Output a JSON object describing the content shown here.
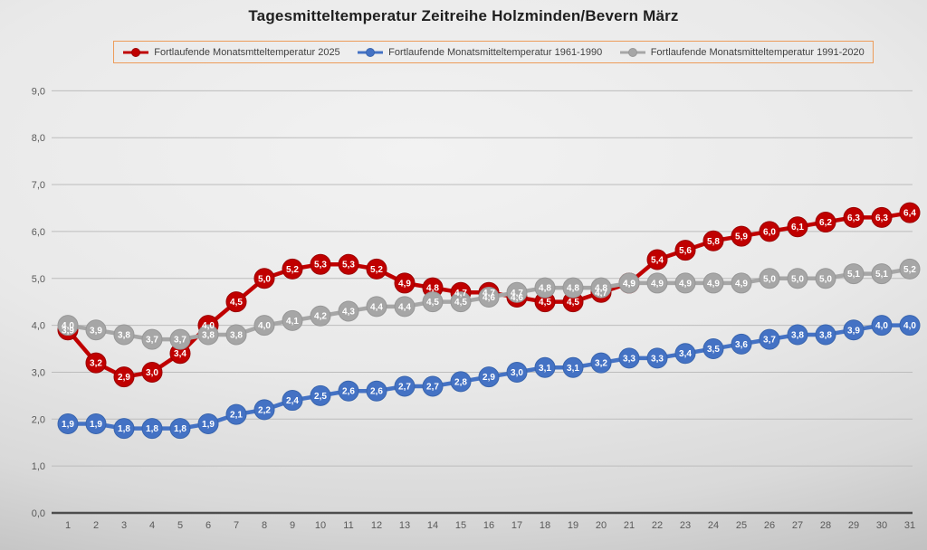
{
  "title": "Tagesmitteltemperatur Zeitreihe Holzminden/Bevern März",
  "legend": {
    "border_color": "#ed9c5a",
    "position": "top"
  },
  "axes": {
    "ytick_labels": [
      "0,0",
      "1,0",
      "2,0",
      "3,0",
      "4,0",
      "5,0",
      "6,0",
      "7,0",
      "8,0",
      "9,0"
    ],
    "tick_color": "#595959",
    "gridline_color": "#bcbcbc",
    "axis_line_color": "#4d4d4d"
  },
  "chart_data": {
    "type": "line",
    "title": "Tagesmitteltemperatur Zeitreihe Holzminden/Bevern März",
    "xlabel": "",
    "ylabel": "",
    "x_categories": [
      1,
      2,
      3,
      4,
      5,
      6,
      7,
      8,
      9,
      10,
      11,
      12,
      13,
      14,
      15,
      16,
      17,
      18,
      19,
      20,
      21,
      22,
      23,
      24,
      25,
      26,
      27,
      28,
      29,
      30,
      31
    ],
    "ylim": [
      0,
      9
    ],
    "ytick_step": 1,
    "grid": true,
    "legend_position": "top",
    "decimal_separator": ",",
    "data_labels": "one decimal, comma separator, white text inside round markers",
    "series": [
      {
        "name": "Fortlaufende Monatsmtteltemperatur 2025",
        "color": "#c00000",
        "edge_color": "#9b0000",
        "values": [
          3.9,
          3.2,
          2.9,
          3.0,
          3.4,
          4.0,
          4.5,
          5.0,
          5.2,
          5.3,
          5.3,
          5.2,
          4.9,
          4.8,
          4.7,
          4.7,
          4.6,
          4.5,
          4.5,
          4.7,
          4.9,
          5.4,
          5.6,
          5.8,
          5.9,
          6.0,
          6.1,
          6.2,
          6.3,
          6.3,
          6.4
        ]
      },
      {
        "name": "Fortlaufende Monatsmitteltemperatur 1961-1990",
        "color": "#4472c4",
        "edge_color": "#3965ae",
        "values": [
          1.9,
          1.9,
          1.8,
          1.8,
          1.8,
          1.9,
          2.1,
          2.2,
          2.4,
          2.5,
          2.6,
          2.6,
          2.7,
          2.7,
          2.8,
          2.9,
          3.0,
          3.1,
          3.1,
          3.2,
          3.3,
          3.3,
          3.4,
          3.5,
          3.6,
          3.7,
          3.8,
          3.8,
          3.9,
          4.0,
          4.0
        ]
      },
      {
        "name": "Fortlaufende Monatsmitteltemperatur 1991-2020",
        "color": "#a6a6a6",
        "edge_color": "#979797",
        "values": [
          4.0,
          3.9,
          3.8,
          3.7,
          3.7,
          3.8,
          3.8,
          4.0,
          4.1,
          4.2,
          4.3,
          4.4,
          4.4,
          4.5,
          4.5,
          4.6,
          4.7,
          4.8,
          4.8,
          4.8,
          4.9,
          4.9,
          4.9,
          4.9,
          4.9,
          5.0,
          5.0,
          5.0,
          5.1,
          5.1,
          5.2
        ]
      }
    ]
  }
}
